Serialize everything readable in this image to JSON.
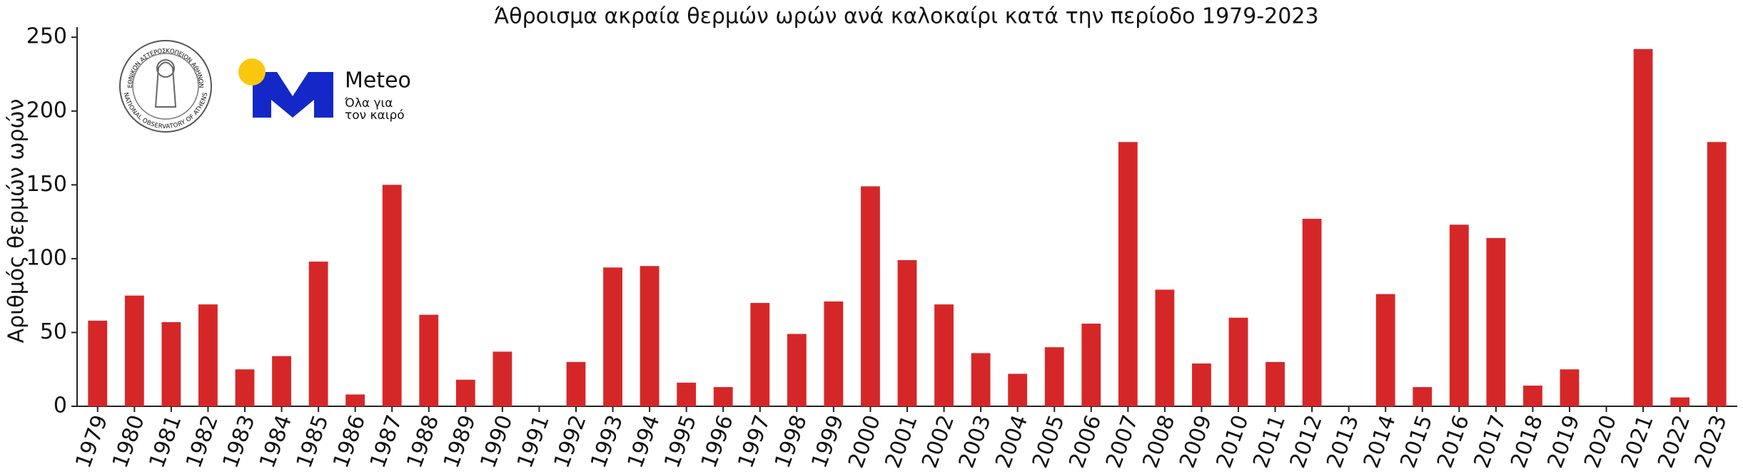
{
  "chart_data": {
    "type": "bar",
    "title": "Άθροισμα ακραία θερμών ωρών ανά καλοκαίρι κατά την περίοδο 1979-2023",
    "y_label": "Αριθμός θερμών ωρών",
    "categories": [
      "1979",
      "1980",
      "1981",
      "1982",
      "1983",
      "1984",
      "1985",
      "1986",
      "1987",
      "1988",
      "1989",
      "1990",
      "1991",
      "1992",
      "1993",
      "1994",
      "1995",
      "1996",
      "1997",
      "1998",
      "1999",
      "2000",
      "2001",
      "2002",
      "2003",
      "2004",
      "2005",
      "2006",
      "2007",
      "2008",
      "2009",
      "2010",
      "2011",
      "2012",
      "2013",
      "2014",
      "2015",
      "2016",
      "2017",
      "2018",
      "2019",
      "2020",
      "2021",
      "2022",
      "2023"
    ],
    "values": [
      58,
      75,
      57,
      69,
      25,
      34,
      98,
      8,
      150,
      62,
      18,
      37,
      0,
      30,
      94,
      95,
      16,
      13,
      70,
      49,
      71,
      149,
      99,
      69,
      36,
      22,
      40,
      56,
      179,
      79,
      29,
      60,
      30,
      127,
      0,
      76,
      13,
      123,
      114,
      14,
      25,
      0,
      242,
      6,
      179
    ],
    "color": "#d62728",
    "ylim": [
      0,
      253
    ],
    "yticks": [
      0,
      50,
      100,
      150,
      200,
      250
    ],
    "grid": false
  },
  "logos": {
    "observatory_top": "ΕΘΝΙΚΟΝ ΑΣΤΕΡΟΣΚΟΠΕΙΟΝ ΑΘΗΝΩΝ",
    "observatory_bottom": "NATIONAL OBSERVATORY OF ATHENS",
    "meteo_name": "Meteo",
    "meteo_tagline_1": "Όλα για",
    "meteo_tagline_2": "τον καιρό"
  }
}
